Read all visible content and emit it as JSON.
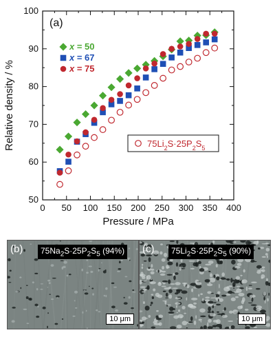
{
  "chart_data": {
    "type": "scatter",
    "panel_label": "(a)",
    "xlabel": "Pressure / MPa",
    "ylabel": "Relative density / %",
    "xlim": [
      0,
      400
    ],
    "ylim": [
      50,
      100
    ],
    "xticks": [
      0,
      50,
      100,
      150,
      200,
      250,
      300,
      350,
      400
    ],
    "yticks": [
      50,
      60,
      70,
      80,
      90,
      100
    ],
    "grid": false,
    "legend_position": "top-left",
    "series": [
      {
        "name_prefix": "x",
        "name_suffix": " = 50",
        "marker": "diamond",
        "color": "#4aa832",
        "x": [
          36,
          54,
          72,
          90,
          108,
          126,
          144,
          162,
          180,
          198,
          216,
          234,
          252,
          270,
          288,
          306,
          324,
          342,
          360
        ],
        "y": [
          63.3,
          66.8,
          70.5,
          72.7,
          75.0,
          77.6,
          79.8,
          82.0,
          83.6,
          84.8,
          85.8,
          86.8,
          88.0,
          89.8,
          92.0,
          92.2,
          93.5,
          93.6,
          94.4
        ]
      },
      {
        "name_prefix": "x",
        "name_suffix": " = 67",
        "marker": "square",
        "color": "#1f4fb5",
        "x": [
          36,
          54,
          72,
          90,
          108,
          126,
          144,
          162,
          180,
          198,
          216,
          234,
          252,
          270,
          288,
          306,
          324,
          342,
          360
        ],
        "y": [
          57.6,
          60.1,
          65.4,
          67.4,
          70.4,
          73.2,
          75.3,
          76.2,
          77.7,
          79.5,
          82.4,
          84.6,
          86.0,
          87.7,
          89.0,
          90.2,
          91.0,
          91.7,
          92.5
        ]
      },
      {
        "name_prefix": "x",
        "name_suffix": " = 75",
        "marker": "circle",
        "color": "#c0282f",
        "x": [
          36,
          54,
          72,
          90,
          108,
          126,
          144,
          162,
          180,
          198,
          216,
          234,
          252,
          270,
          288,
          306,
          324,
          342,
          360
        ],
        "y": [
          57.2,
          62.0,
          65.5,
          67.9,
          71.2,
          74.3,
          76.5,
          78.0,
          80.3,
          82.2,
          84.8,
          86.1,
          88.6,
          90.0,
          90.6,
          91.3,
          92.6,
          94.0,
          94.0
        ]
      },
      {
        "name": "75Li2S·25P2S5",
        "marker": "open-circle",
        "color": "#c0282f",
        "x": [
          36,
          54,
          72,
          90,
          108,
          126,
          144,
          162,
          180,
          198,
          216,
          234,
          252,
          270,
          288,
          306,
          324,
          342,
          360
        ],
        "y": [
          54.1,
          57.7,
          61.9,
          64.2,
          66.5,
          68.6,
          71.1,
          73.2,
          75.1,
          76.6,
          78.4,
          80.3,
          82.2,
          84.4,
          85.3,
          86.5,
          87.5,
          89.0,
          90.2
        ]
      }
    ],
    "annotation_box": {
      "prefix": "75Li",
      "s1": "2",
      "mid1": "S·25P",
      "s2": "2",
      "mid2": "S",
      "s3": "5"
    }
  },
  "micrographs": [
    {
      "tag": "(b)",
      "comp": {
        "p1": "75Na",
        "s1": "2",
        "p2": "S·25P",
        "s2": "2",
        "p3": "S",
        "s3": "5",
        "p4": " (94%)"
      },
      "scale": "10 μm"
    },
    {
      "tag": "(c)",
      "comp": {
        "p1": "75Li",
        "s1": "2",
        "p2": "S·25P",
        "s2": "2",
        "p3": "S",
        "s3": "5",
        "p4": " (90%)"
      },
      "scale": "10 μm"
    }
  ]
}
